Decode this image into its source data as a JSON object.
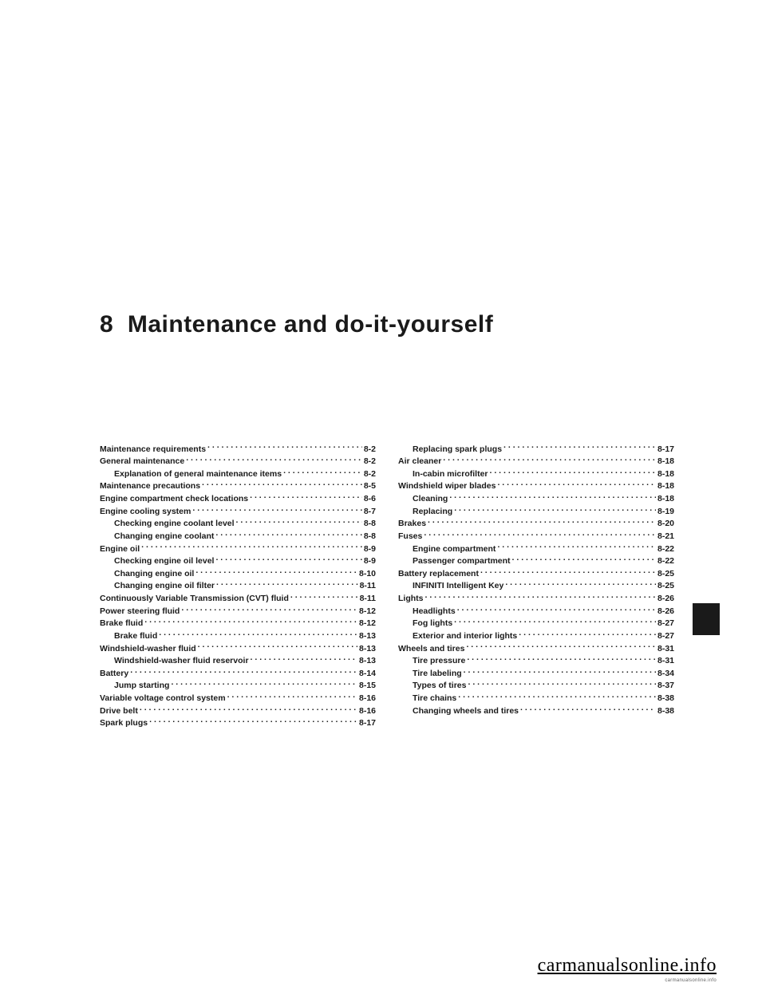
{
  "chapter": {
    "number": "8",
    "title": "Maintenance and do-it-yourself"
  },
  "toc": {
    "col1": [
      {
        "label": "Maintenance requirements",
        "page": "8-2",
        "indent": false
      },
      {
        "label": "General maintenance",
        "page": "8-2",
        "indent": false
      },
      {
        "label": "Explanation of general maintenance items",
        "page": "8-2",
        "indent": true
      },
      {
        "label": "Maintenance precautions",
        "page": "8-5",
        "indent": false
      },
      {
        "label": "Engine compartment check locations",
        "page": "8-6",
        "indent": false
      },
      {
        "label": "Engine cooling system",
        "page": "8-7",
        "indent": false
      },
      {
        "label": "Checking engine coolant level",
        "page": "8-8",
        "indent": true
      },
      {
        "label": "Changing engine coolant",
        "page": "8-8",
        "indent": true
      },
      {
        "label": "Engine oil",
        "page": "8-9",
        "indent": false
      },
      {
        "label": "Checking engine oil level",
        "page": "8-9",
        "indent": true
      },
      {
        "label": "Changing engine oil",
        "page": "8-10",
        "indent": true
      },
      {
        "label": "Changing engine oil filter",
        "page": "8-11",
        "indent": true
      },
      {
        "label": "Continuously Variable Transmission (CVT) fluid",
        "page": "8-11",
        "indent": false
      },
      {
        "label": "Power steering fluid",
        "page": "8-12",
        "indent": false
      },
      {
        "label": "Brake fluid",
        "page": "8-12",
        "indent": false
      },
      {
        "label": "Brake fluid",
        "page": "8-13",
        "indent": true
      },
      {
        "label": "Windshield-washer fluid",
        "page": "8-13",
        "indent": false
      },
      {
        "label": "Windshield-washer fluid reservoir",
        "page": "8-13",
        "indent": true
      },
      {
        "label": "Battery",
        "page": "8-14",
        "indent": false
      },
      {
        "label": "Jump starting",
        "page": "8-15",
        "indent": true
      },
      {
        "label": "Variable voltage control system",
        "page": "8-16",
        "indent": false
      },
      {
        "label": "Drive belt",
        "page": "8-16",
        "indent": false
      },
      {
        "label": "Spark plugs",
        "page": "8-17",
        "indent": false
      }
    ],
    "col2": [
      {
        "label": "Replacing spark plugs",
        "page": "8-17",
        "indent": true
      },
      {
        "label": "Air cleaner",
        "page": "8-18",
        "indent": false
      },
      {
        "label": "In-cabin microfilter",
        "page": "8-18",
        "indent": true
      },
      {
        "label": "Windshield wiper blades",
        "page": "8-18",
        "indent": false
      },
      {
        "label": "Cleaning",
        "page": "8-18",
        "indent": true
      },
      {
        "label": "Replacing",
        "page": "8-19",
        "indent": true
      },
      {
        "label": "Brakes",
        "page": "8-20",
        "indent": false
      },
      {
        "label": "Fuses",
        "page": "8-21",
        "indent": false
      },
      {
        "label": "Engine compartment",
        "page": "8-22",
        "indent": true
      },
      {
        "label": "Passenger compartment",
        "page": "8-22",
        "indent": true
      },
      {
        "label": "Battery replacement",
        "page": "8-25",
        "indent": false
      },
      {
        "label": "INFINITI Intelligent Key",
        "page": "8-25",
        "indent": true
      },
      {
        "label": "Lights",
        "page": "8-26",
        "indent": false
      },
      {
        "label": "Headlights",
        "page": "8-26",
        "indent": true
      },
      {
        "label": "Fog lights",
        "page": "8-27",
        "indent": true
      },
      {
        "label": "Exterior and interior lights",
        "page": "8-27",
        "indent": true
      },
      {
        "label": "Wheels and tires",
        "page": "8-31",
        "indent": false
      },
      {
        "label": "Tire pressure",
        "page": "8-31",
        "indent": true
      },
      {
        "label": "Tire labeling",
        "page": "8-34",
        "indent": true
      },
      {
        "label": "Types of tires",
        "page": "8-37",
        "indent": true
      },
      {
        "label": "Tire chains",
        "page": "8-38",
        "indent": true
      },
      {
        "label": "Changing wheels and tires",
        "page": "8-38",
        "indent": true
      }
    ]
  },
  "watermark": "carmanualsonline.info",
  "watermark_sub": "carmanualsonline.info"
}
